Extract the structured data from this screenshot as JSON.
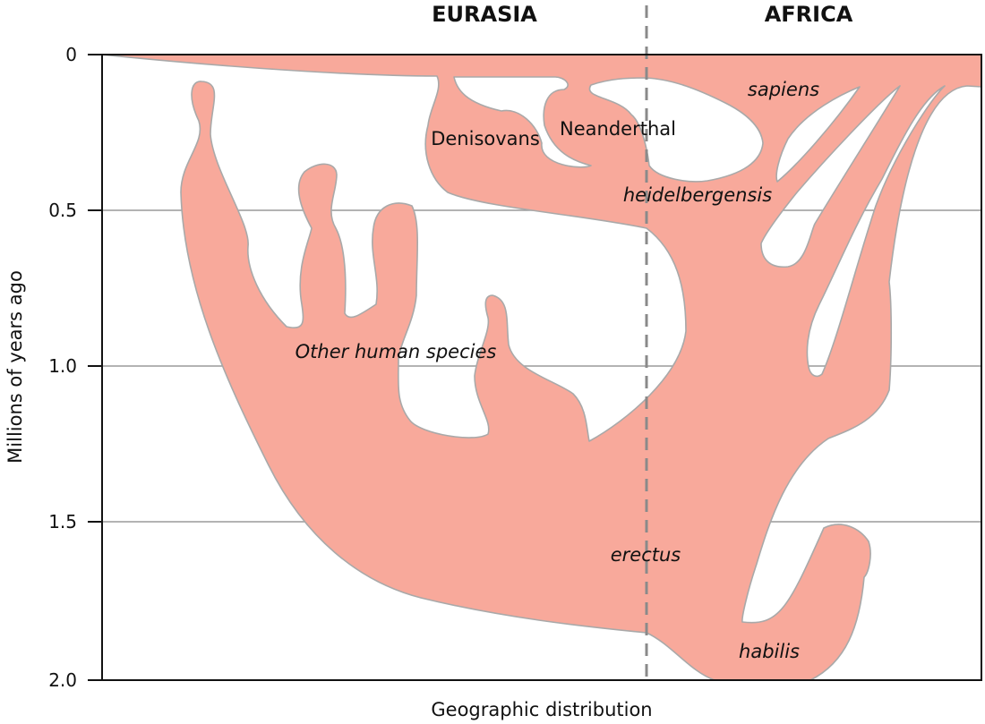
{
  "regions": {
    "left": "EURASIA",
    "right": "AFRICA"
  },
  "axes": {
    "y_title": "Millions of years ago",
    "x_title": "Geographic distribution",
    "y_ticks": [
      "0",
      "0.5",
      "1.0",
      "1.5",
      "2.0"
    ]
  },
  "species": {
    "sapiens": "sapiens",
    "denisovans": "Denisovans",
    "neanderthal": "Neanderthal",
    "heidelbergensis": "heidelbergensis",
    "other": "Other human species",
    "erectus": "erectus",
    "habilis": "habilis"
  },
  "colors": {
    "fill": "#f8a99b",
    "outline": "#a9a9a9",
    "grid": "#9a9a9a",
    "divider": "#8a8a8a"
  }
}
